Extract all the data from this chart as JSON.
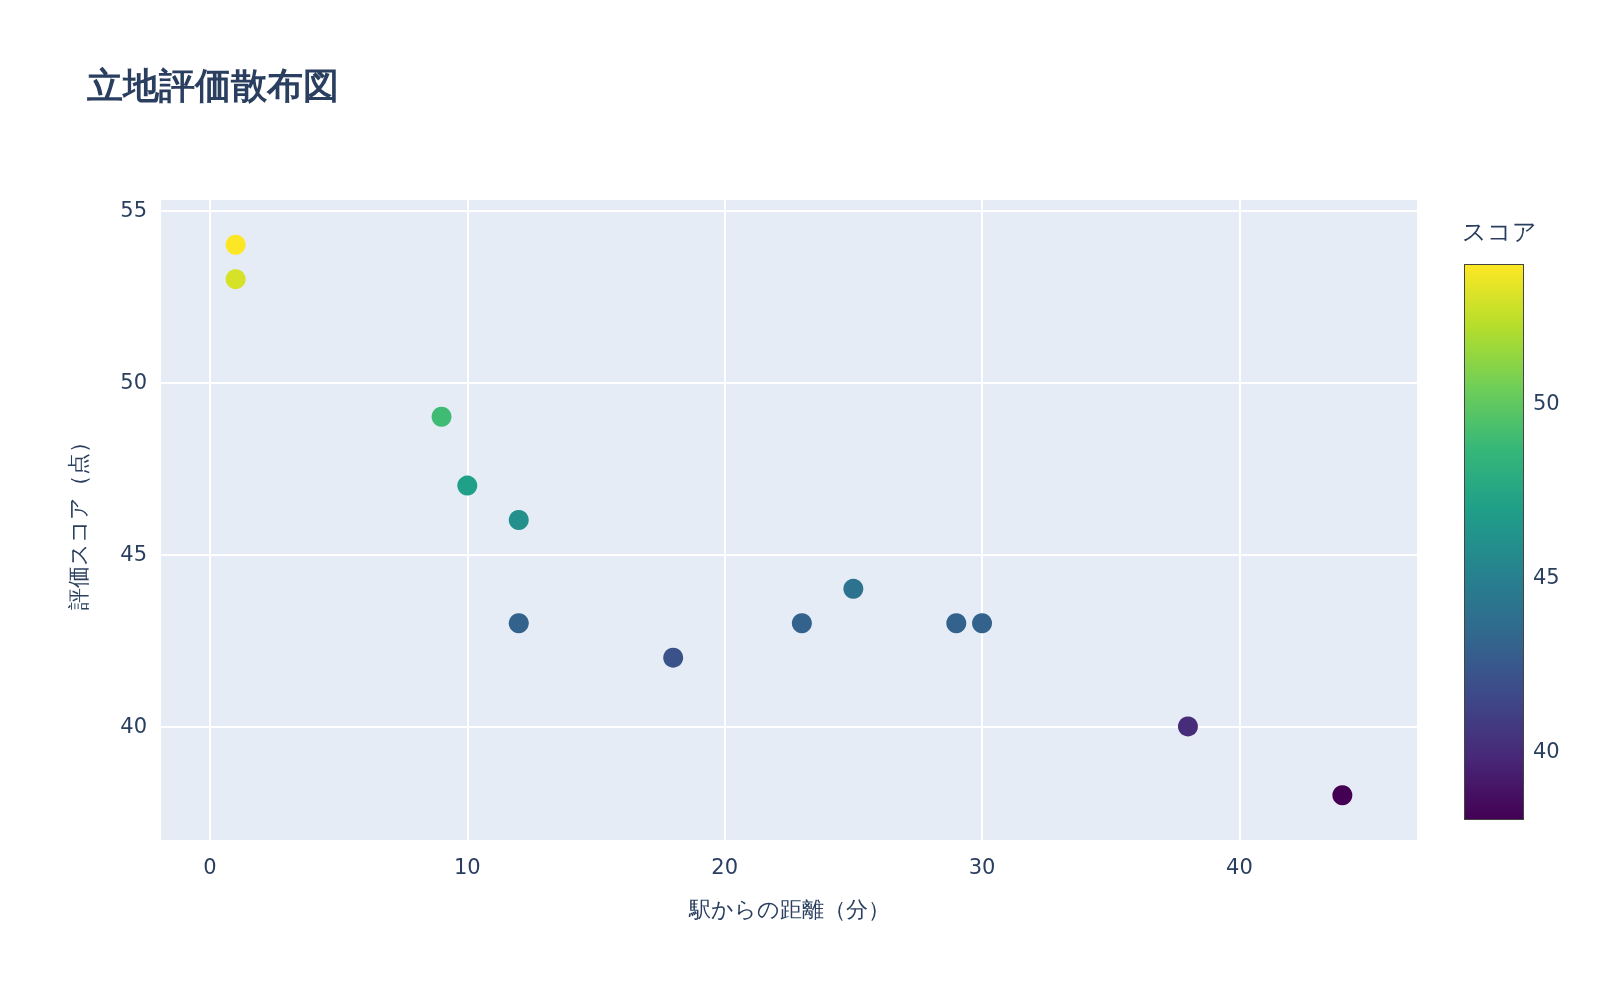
{
  "chart_data": {
    "type": "scatter",
    "title": "立地評価散布図",
    "xlabel": "駅からの距離（分）",
    "ylabel": "評価スコア（点）",
    "clabel": "スコア",
    "x": [
      1,
      1,
      9,
      10,
      12,
      12,
      18,
      23,
      25,
      29,
      30,
      38,
      44
    ],
    "values": [
      54,
      53,
      49,
      47,
      46,
      43,
      42,
      43,
      44,
      43,
      43,
      40,
      38
    ],
    "cvalues": [
      54,
      53,
      49,
      47,
      46,
      43,
      42,
      43,
      44,
      43,
      43,
      40,
      38
    ],
    "clim": [
      38,
      54
    ],
    "cticks": [
      40,
      45,
      50
    ],
    "xlim": [
      -1.9,
      46.9
    ],
    "xticks": [
      0,
      10,
      20,
      30,
      40
    ],
    "ylim": [
      36.7,
      55.3
    ],
    "yticks": [
      40,
      45,
      50,
      55
    ],
    "grid": true,
    "marker": "circle"
  }
}
